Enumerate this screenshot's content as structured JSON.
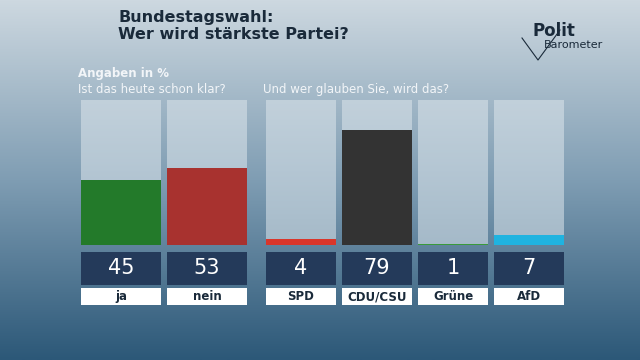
{
  "title": "Bundestagswahl:\nWer wird stärkste Partei?",
  "subtitle": "Angaben in %",
  "logo": [
    "Polit",
    "Barometer"
  ],
  "chart_data": [
    {
      "type": "bar",
      "title": "Ist das heute schon klar?",
      "categories": [
        "ja",
        "nein"
      ],
      "values": [
        45,
        53
      ],
      "colors": [
        "#237a2a",
        "#a8322f"
      ],
      "ylim": [
        0,
        100
      ],
      "data_labels": true,
      "tick_labels": "x"
    },
    {
      "type": "bar",
      "title": "Und wer glauben Sie, wird das?",
      "categories": [
        "SPD",
        "CDU/CSU",
        "Grüne",
        "AfD"
      ],
      "values": [
        4,
        79,
        1,
        7
      ],
      "colors": [
        "#d9362b",
        "#333333",
        "#3a9a3a",
        "#1fb3e0"
      ],
      "ylim": [
        0,
        100
      ],
      "data_labels": true,
      "tick_labels": "x"
    }
  ]
}
